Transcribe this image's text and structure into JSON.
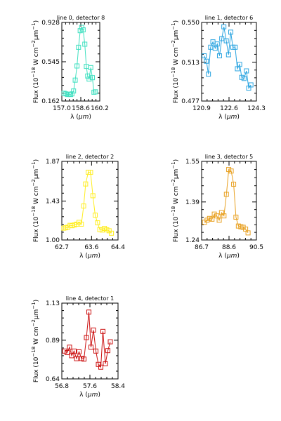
{
  "chart_data": [
    {
      "type": "line",
      "title": "line 0, detector 8",
      "xlabel": "λ (μm)",
      "ylabel": "Flux (10^-18 W cm^-2 μm^-1)",
      "xlim": [
        157.0,
        160.2
      ],
      "ylim": [
        0.162,
        0.928
      ],
      "x_ticks": [
        "157.0",
        "158.6",
        "160.2"
      ],
      "y_ticks": [
        "0.162",
        "0.545",
        "0.928"
      ],
      "color": "#3fe0c0",
      "marker": "open-square",
      "series": [
        {
          "x": [
            157.19,
            157.35,
            157.5,
            157.61,
            157.74,
            157.85,
            157.99,
            158.13,
            158.28,
            158.41,
            158.55,
            158.68,
            158.8,
            158.94,
            159.07,
            159.18,
            159.3,
            159.44,
            159.58,
            159.71,
            159.83
          ],
          "y": [
            0.238,
            0.232,
            0.226,
            0.228,
            0.226,
            0.232,
            0.26,
            0.366,
            0.504,
            0.686,
            0.848,
            0.88,
            0.856,
            0.716,
            0.5,
            0.406,
            0.376,
            0.488,
            0.39,
            0.248,
            0.252
          ]
        }
      ]
    },
    {
      "type": "line",
      "title": "line 1, detector 6",
      "xlabel": "λ (μm)",
      "ylabel": "Flux (10^-18 W cm^-2 μm^-1)",
      "xlim": [
        120.9,
        124.3
      ],
      "ylim": [
        0.477,
        0.55
      ],
      "x_ticks": [
        "120.9",
        "122.6",
        "124.3"
      ],
      "y_ticks": [
        "0.477",
        "0.513",
        "0.550"
      ],
      "color": "#2aa4e0",
      "marker": "open-square",
      "series": [
        {
          "x": [
            121.06,
            121.2,
            121.32,
            121.46,
            121.6,
            121.74,
            121.87,
            122.01,
            122.15,
            122.28,
            122.43,
            122.57,
            122.71,
            122.84,
            122.98,
            123.12,
            123.26,
            123.39,
            123.53,
            123.68,
            123.82,
            123.96
          ],
          "y": [
            0.519,
            0.514,
            0.502,
            0.527,
            0.532,
            0.526,
            0.53,
            0.519,
            0.535,
            0.546,
            0.533,
            0.52,
            0.541,
            0.527,
            0.527,
            0.507,
            0.511,
            0.499,
            0.498,
            0.505,
            0.489,
            0.492
          ]
        }
      ]
    },
    {
      "type": "line",
      "title": "line 2, detector 2",
      "xlabel": "λ (μm)",
      "ylabel": "Flux (10^-18 W cm^-2 μm^-1)",
      "xlim": [
        62.7,
        64.4
      ],
      "ylim": [
        1.0,
        1.87
      ],
      "x_ticks": [
        "62.7",
        "63.6",
        "64.4"
      ],
      "y_ticks": [
        "1.00",
        "1.43",
        "1.87"
      ],
      "color": "#ffee22",
      "marker": "open-square",
      "series": [
        {
          "x": [
            62.76,
            62.82,
            62.88,
            62.95,
            63.01,
            63.08,
            63.15,
            63.22,
            63.29,
            63.36,
            63.42,
            63.5,
            63.57,
            63.64,
            63.71,
            63.78,
            63.85,
            63.92,
            63.99,
            64.06,
            64.13,
            64.2
          ],
          "y": [
            1.131,
            1.135,
            1.141,
            1.162,
            1.158,
            1.166,
            1.175,
            1.195,
            1.175,
            1.376,
            1.62,
            1.75,
            1.749,
            1.49,
            1.275,
            1.19,
            1.114,
            1.11,
            1.128,
            1.112,
            1.102,
            1.075
          ]
        }
      ]
    },
    {
      "type": "line",
      "title": "line 3, detector 5",
      "xlabel": "λ (μm)",
      "ylabel": "Flux (10^-18 W cm^-2 μm^-1)",
      "xlim": [
        86.7,
        90.5
      ],
      "ylim": [
        1.24,
        1.55
      ],
      "x_ticks": [
        "86.7",
        "88.6",
        "90.5"
      ],
      "y_ticks": [
        "1.24",
        "1.39",
        "1.55"
      ],
      "color": "#e8a020",
      "marker": "open-square",
      "series": [
        {
          "x": [
            86.9,
            87.08,
            87.25,
            87.42,
            87.58,
            87.75,
            87.92,
            88.08,
            88.25,
            88.42,
            88.58,
            88.75,
            88.92,
            89.08,
            89.25,
            89.42,
            89.58,
            89.75,
            89.92
          ],
          "y": [
            1.31,
            1.318,
            1.325,
            1.322,
            1.342,
            1.335,
            1.318,
            1.348,
            1.335,
            1.42,
            1.518,
            1.512,
            1.46,
            1.33,
            1.295,
            1.292,
            1.29,
            1.283,
            1.268
          ]
        }
      ]
    },
    {
      "type": "line",
      "title": "line 4, detector 1",
      "xlabel": "λ (μm)",
      "ylabel": "Flux (10^-18 W cm^-2 μm^-1)",
      "xlim": [
        56.8,
        58.4
      ],
      "ylim": [
        0.64,
        1.13
      ],
      "x_ticks": [
        "56.8",
        "57.6",
        "58.4"
      ],
      "y_ticks": [
        "0.64",
        "0.89",
        "1.13"
      ],
      "color": "#cc1111",
      "marker": "open-square",
      "series": [
        {
          "x": [
            56.88,
            56.95,
            57.02,
            57.08,
            57.15,
            57.22,
            57.29,
            57.36,
            57.43,
            57.5,
            57.57,
            57.63,
            57.7,
            57.77,
            57.84,
            57.91,
            57.97,
            58.04,
            58.11,
            58.18
          ],
          "y": [
            0.82,
            0.81,
            0.845,
            0.79,
            0.82,
            0.771,
            0.815,
            0.772,
            0.768,
            0.907,
            1.072,
            0.845,
            0.956,
            0.82,
            0.734,
            0.716,
            0.947,
            0.738,
            0.823,
            0.88
          ]
        }
      ]
    }
  ]
}
